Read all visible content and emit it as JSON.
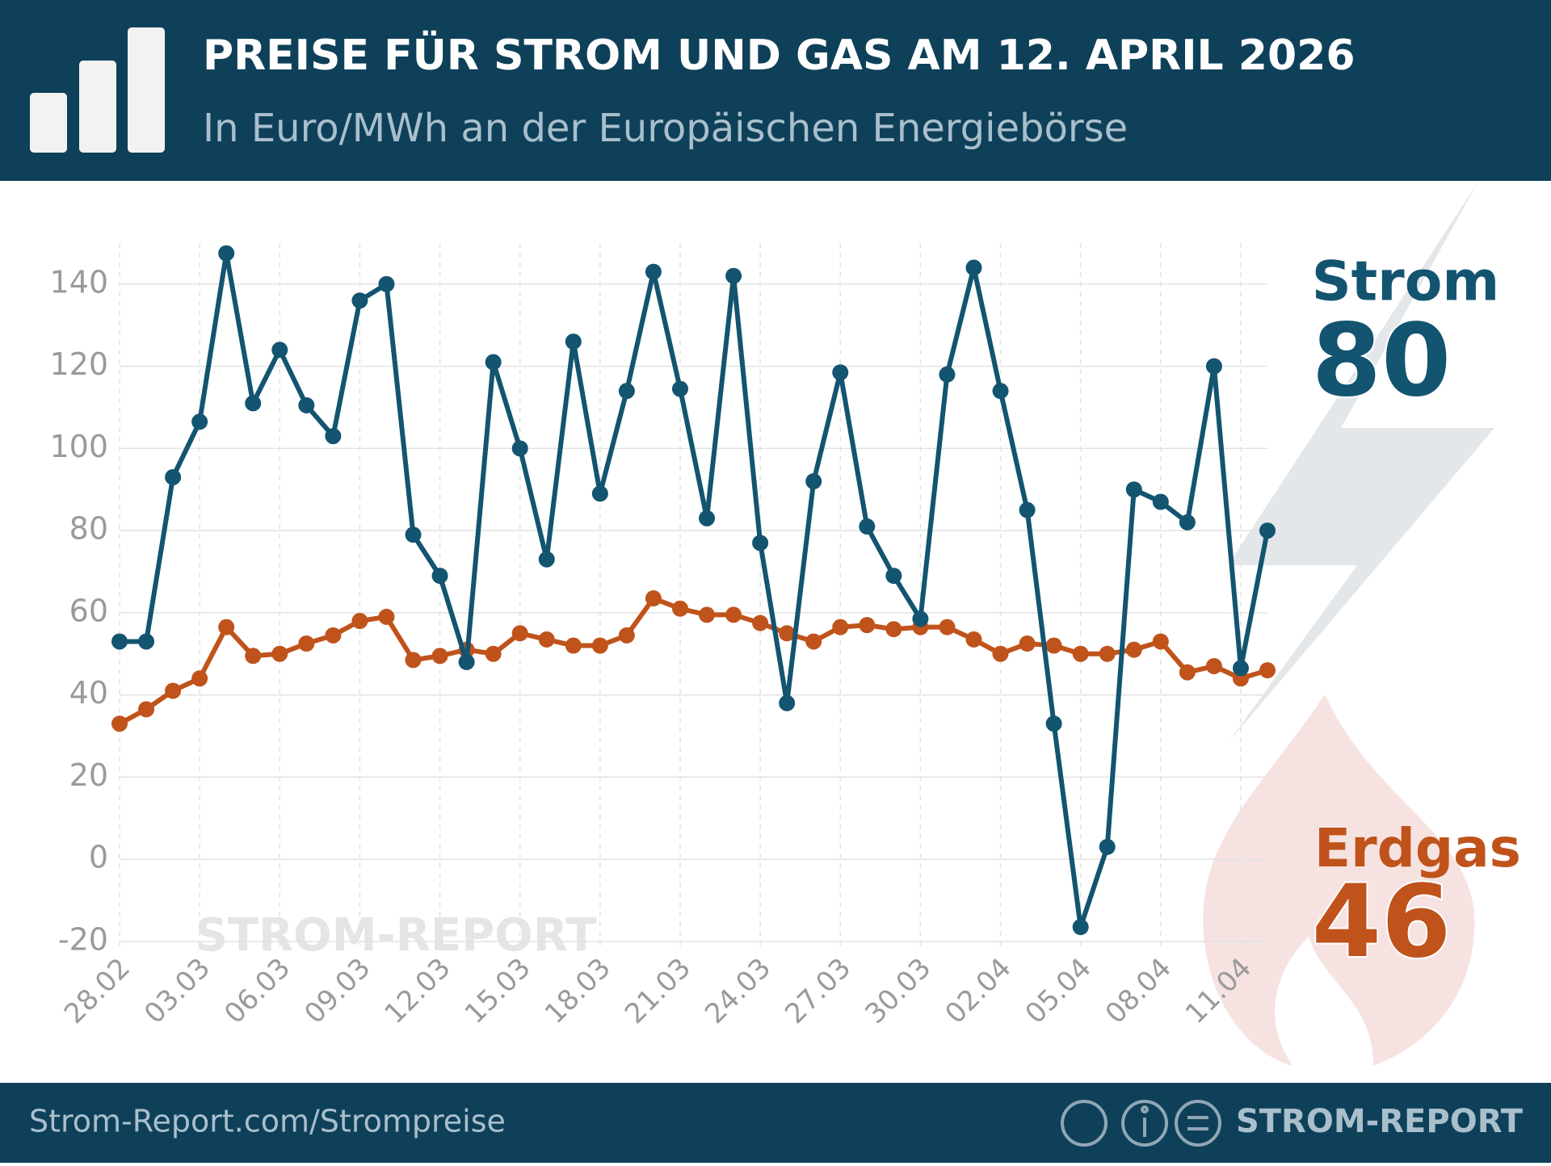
{
  "chart_data": {
    "type": "line",
    "title": "PREISE FÜR STROM UND GAS AM 12. APRIL 2026",
    "subtitle": "In Euro/MWh an der Europäischen Energiebörse",
    "source": "Strom-Report.com/Strompreise",
    "brand": "STROM-REPORT",
    "watermark": "STROM-REPORT",
    "categories": [
      "28.02",
      null,
      null,
      "03.03",
      null,
      null,
      "06.03",
      null,
      null,
      "09.03",
      null,
      null,
      "12.03",
      null,
      null,
      "15.03",
      null,
      null,
      "18.03",
      null,
      null,
      "21.03",
      null,
      null,
      "24.03",
      null,
      null,
      "27.03",
      null,
      null,
      "30.03",
      null,
      null,
      "02.04",
      null,
      null,
      "05.04",
      null,
      null,
      "08.04",
      null,
      null,
      "11.04",
      null
    ],
    "series": [
      {
        "name": "Strom",
        "color": "#135470",
        "values": [
          53,
          53,
          93,
          106.5,
          147.5,
          111,
          124,
          110.5,
          103,
          136,
          140,
          79,
          69,
          48,
          121,
          100,
          73,
          126,
          89,
          114,
          143,
          114.5,
          83,
          142,
          77,
          38,
          92,
          118.5,
          81,
          69,
          58.5,
          118,
          144,
          114,
          85,
          33,
          -16.5,
          3,
          90,
          87,
          82,
          120,
          46.5,
          80
        ]
      },
      {
        "name": "Erdgas",
        "color": "#c0531b",
        "values": [
          33,
          36.5,
          41,
          44,
          56.5,
          49.5,
          50,
          52.5,
          54.5,
          58,
          59,
          48.5,
          49.5,
          51,
          50,
          55,
          53.5,
          52,
          52,
          54.5,
          63.5,
          61,
          59.5,
          59.5,
          57.5,
          55,
          53,
          56.5,
          57,
          56,
          56.5,
          56.5,
          53.5,
          50,
          52.5,
          52,
          50,
          50,
          51,
          53,
          45.5,
          47,
          44,
          46
        ]
      }
    ],
    "ylim": [
      -22,
      150
    ],
    "yticks": [
      -20,
      0,
      20,
      40,
      60,
      80,
      100,
      120,
      140
    ],
    "grid": true
  }
}
